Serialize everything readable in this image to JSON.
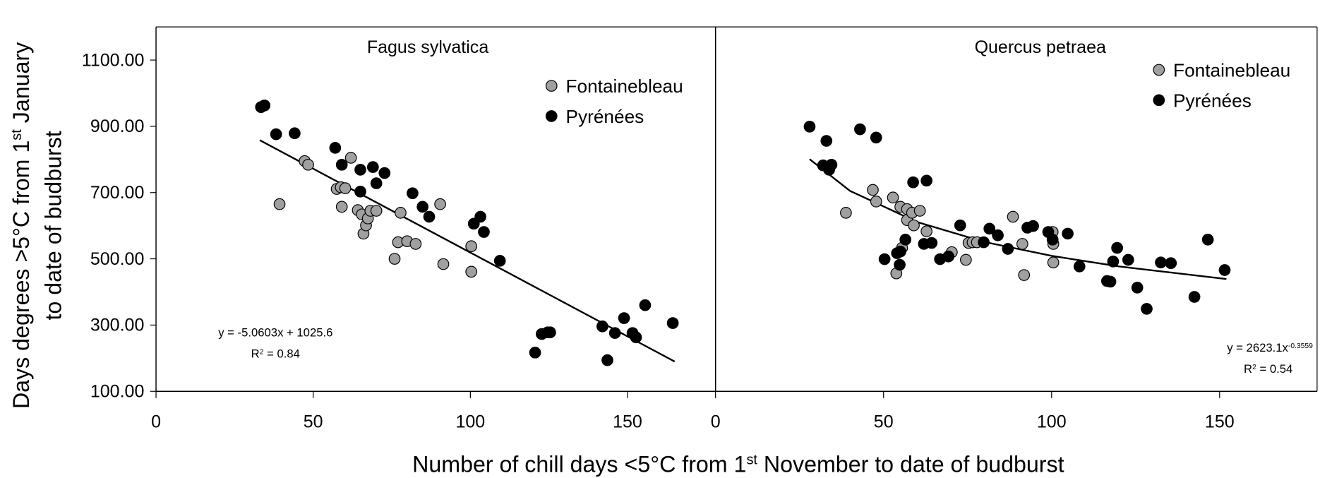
{
  "shared": {
    "ylabel_parts": [
      "Days degrees >5°C from 1",
      "st",
      " January"
    ],
    "ylabel_line2": "to date of budburst",
    "xlabel_parts": [
      "Number of chill days <5°C from 1",
      "st",
      " November to date of budburst"
    ]
  },
  "chart_data": [
    {
      "type": "scatter",
      "title": "Fagus sylvatica",
      "legend": "upper right",
      "xlim": [
        0,
        178
      ],
      "ylim": [
        100,
        1200
      ],
      "xticks": [
        0,
        50,
        100,
        150
      ],
      "yticks": [
        {
          "value": 100,
          "label": "100.00"
        },
        {
          "value": 300,
          "label": "300.00"
        },
        {
          "value": 500,
          "label": "500.00"
        },
        {
          "value": 700,
          "label": "700.00"
        },
        {
          "value": 900,
          "label": "900.00"
        },
        {
          "value": 1100,
          "label": "1100.00"
        }
      ],
      "series": [
        {
          "name": "Fontainebleau",
          "color": "#a0a0a0",
          "x": [
            39.3,
            47.3,
            48.4,
            57.5,
            58.8,
            60.2,
            59.1,
            62.0,
            64.2,
            65.5,
            66.0,
            66.8,
            67.4,
            68.2,
            70.1,
            77.8,
            77.0,
            79.9,
            82.6,
            75.9,
            90.4,
            91.4,
            100.3,
            100.3
          ],
          "values": [
            665,
            795,
            784,
            711,
            716,
            713,
            657,
            805,
            647,
            634,
            576,
            601,
            622,
            645,
            645,
            639,
            550,
            553,
            545,
            500,
            665,
            484,
            538,
            461
          ]
        },
        {
          "name": "Pyrénées",
          "color": "#000000",
          "x": [
            33.4,
            34.5,
            38.2,
            44.1,
            57.0,
            59.1,
            65.0,
            69.0,
            72.7,
            70.1,
            65.0,
            81.6,
            84.8,
            86.9,
            101.1,
            103.2,
            104.3,
            109.4,
            120.6,
            122.7,
            124.6,
            125.4,
            142.0,
            146.0,
            148.9,
            151.6,
            152.7,
            155.6,
            143.6,
            164.4
          ],
          "values": [
            958,
            963,
            876,
            879,
            835,
            784,
            769,
            777,
            759,
            728,
            703,
            698,
            657,
            627,
            606,
            627,
            581,
            494,
            217,
            273,
            278,
            278,
            296,
            276,
            321,
            276,
            263,
            360,
            194,
            306
          ]
        }
      ],
      "trend": {
        "x": [
          33,
          165
        ],
        "values": [
          858,
          190
        ]
      },
      "equation_parts": [
        "y = -5.0603x + 1025.6"
      ],
      "r2_parts": [
        "R",
        "2",
        " = 0.84"
      ]
    },
    {
      "type": "scatter",
      "title": "Quercus petraea",
      "legend": "upper right",
      "xlim": [
        0,
        179
      ],
      "ylim": [
        100,
        1200
      ],
      "xticks": [
        0,
        50,
        100,
        150
      ],
      "series": [
        {
          "name": "Fontainebleau",
          "color": "#a0a0a0",
          "x": [
            38.8,
            46.8,
            47.8,
            52.8,
            55.0,
            57.0,
            57.0,
            58.5,
            59.0,
            60.8,
            62.8,
            53.8,
            55.5,
            70.3,
            75.3,
            76.5,
            77.8,
            74.5,
            88.5,
            91.3,
            91.8,
            100.3,
            100.5,
            100.5
          ],
          "values": [
            639,
            708,
            673,
            685,
            657,
            650,
            617,
            639,
            601,
            645,
            583,
            456,
            533,
            520,
            548,
            550,
            550,
            497,
            627,
            545,
            451,
            581,
            545,
            489
          ]
        },
        {
          "name": "Pyrénées",
          "color": "#000000",
          "x": [
            28.0,
            33.0,
            34.5,
            32.0,
            33.8,
            43.0,
            47.8,
            50.3,
            54.0,
            54.8,
            55.0,
            56.5,
            58.8,
            62.8,
            62.0,
            64.3,
            66.8,
            69.3,
            72.8,
            79.8,
            81.5,
            84.0,
            87.0,
            92.8,
            94.5,
            99.0,
            100.3,
            104.8,
            108.3,
            116.5,
            117.5,
            118.3,
            119.5,
            122.8,
            125.5,
            128.3,
            132.5,
            135.5,
            142.5,
            146.5,
            151.5
          ],
          "values": [
            899,
            856,
            784,
            782,
            769,
            891,
            866,
            499,
            517,
            482,
            522,
            558,
            731,
            736,
            545,
            548,
            499,
            507,
            601,
            550,
            591,
            571,
            530,
            594,
            599,
            581,
            558,
            576,
            477,
            433,
            431,
            492,
            533,
            497,
            413,
            349,
            489,
            487,
            385,
            558,
            466
          ]
        }
      ],
      "trend": {
        "x": [
          28,
          40,
          60,
          80,
          100,
          120,
          152
        ],
        "values": [
          801,
          705,
          611,
          551,
          509,
          477,
          439
        ]
      },
      "equation_parts": [
        "y = 2623.1x",
        "-0.3559"
      ],
      "r2_parts": [
        "R",
        "2",
        " = 0.54"
      ]
    }
  ]
}
